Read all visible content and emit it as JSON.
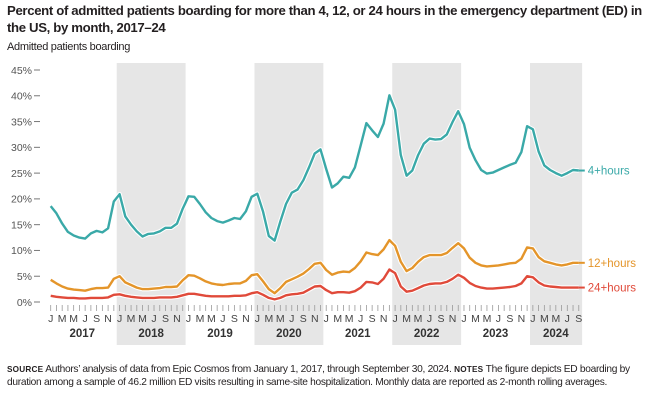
{
  "title": "Percent of admitted patients boarding for more than 4, 12, or 24 hours in the emergency department (ED) in the US, by month, 2017–24",
  "footer": {
    "source_keyword": "source",
    "source_text": "Authors’ analysis of data from Epic Cosmos from January 1, 2017, through September 30, 2024.",
    "notes_keyword": "notes",
    "notes_text": "The figure depicts ED boarding by duration among a sample of 46.2 million ED visits resulting in same-site hospitalization. Monthly data are reported as 2-month rolling averages."
  },
  "colors": {
    "series_4h": "#3aa9a8",
    "series_12h": "#e4952a",
    "series_24h": "#e04a3a",
    "band": "#e6e6e6"
  },
  "chart_data": {
    "type": "line",
    "title": "Percent of admitted patients boarding for more than 4, 12, or 24 hours in the emergency department (ED) in the US, by month, 2017–24",
    "xlabel": "",
    "ylabel": "Admitted patients boarding",
    "ylim": [
      0,
      45
    ],
    "yticks": [
      "0%",
      "5%",
      "10%",
      "15%",
      "20%",
      "25%",
      "30%",
      "35%",
      "40%",
      "45%"
    ],
    "ytick_values": [
      0,
      5,
      10,
      15,
      20,
      25,
      30,
      35,
      40,
      45
    ],
    "x_start": "2017-01",
    "x_end": "2024-09",
    "month_tick_labels": [
      "J",
      "M",
      "M",
      "J",
      "S",
      "N"
    ],
    "years": [
      "2017",
      "2018",
      "2019",
      "2020",
      "2021",
      "2022",
      "2023",
      "2024"
    ],
    "shaded_years": [
      "2018",
      "2020",
      "2022",
      "2024"
    ],
    "grid": false,
    "legend": "inline-right",
    "series": [
      {
        "name": "4+hours",
        "values": [
          18.6,
          17.2,
          15.2,
          13.6,
          12.9,
          12.5,
          12.3,
          13.3,
          13.8,
          13.5,
          14.3,
          19.5,
          20.9,
          16.6,
          15.0,
          13.7,
          12.7,
          13.2,
          13.3,
          13.7,
          14.4,
          14.4,
          15.2,
          18.1,
          20.5,
          20.4,
          19.0,
          17.4,
          16.3,
          15.7,
          15.4,
          15.8,
          16.3,
          16.1,
          17.6,
          20.4,
          21.0,
          17.5,
          12.8,
          11.9,
          15.6,
          19.0,
          21.2,
          21.8,
          23.6,
          26.1,
          28.8,
          29.6,
          25.8,
          22.2,
          23.0,
          24.3,
          24.1,
          26.1,
          30.4,
          34.7,
          33.3,
          32.0,
          34.6,
          40.1,
          37.3,
          28.5,
          24.5,
          25.5,
          28.5,
          30.7,
          31.7,
          31.5,
          31.6,
          32.5,
          34.9,
          37.0,
          34.5,
          29.9,
          27.5,
          25.6,
          24.9,
          25.1,
          25.6,
          26.1,
          26.6,
          27.0,
          29.1,
          34.1,
          33.5,
          29.2,
          26.5,
          25.6,
          25.0,
          24.5,
          25.0,
          25.6,
          25.5
        ]
      },
      {
        "name": "12+hours",
        "values": [
          4.3,
          3.6,
          3.0,
          2.6,
          2.4,
          2.3,
          2.2,
          2.5,
          2.7,
          2.7,
          2.8,
          4.5,
          5.0,
          3.8,
          3.3,
          2.8,
          2.5,
          2.5,
          2.6,
          2.7,
          2.9,
          2.9,
          3.0,
          4.2,
          5.2,
          5.1,
          4.6,
          4.0,
          3.6,
          3.4,
          3.3,
          3.5,
          3.6,
          3.6,
          4.1,
          5.2,
          5.4,
          4.0,
          2.5,
          1.7,
          2.7,
          3.9,
          4.4,
          4.9,
          5.5,
          6.4,
          7.4,
          7.6,
          6.2,
          5.3,
          5.7,
          5.9,
          5.8,
          6.6,
          7.9,
          9.6,
          9.3,
          9.1,
          10.2,
          12.0,
          10.9,
          7.8,
          6.0,
          6.6,
          7.8,
          8.7,
          9.1,
          9.1,
          9.1,
          9.5,
          10.5,
          11.4,
          10.4,
          8.6,
          7.6,
          7.1,
          6.9,
          7.0,
          7.1,
          7.3,
          7.5,
          7.6,
          8.4,
          10.6,
          10.4,
          8.7,
          7.9,
          7.6,
          7.3,
          7.1,
          7.3,
          7.6,
          7.6
        ]
      },
      {
        "name": "24+hours",
        "values": [
          1.2,
          1.0,
          0.9,
          0.8,
          0.8,
          0.7,
          0.7,
          0.8,
          0.8,
          0.8,
          0.9,
          1.4,
          1.5,
          1.2,
          1.0,
          0.9,
          0.8,
          0.8,
          0.8,
          0.9,
          0.9,
          0.9,
          1.0,
          1.3,
          1.6,
          1.6,
          1.4,
          1.2,
          1.1,
          1.1,
          1.1,
          1.1,
          1.2,
          1.2,
          1.3,
          1.7,
          1.9,
          1.4,
          0.8,
          0.5,
          0.8,
          1.3,
          1.5,
          1.6,
          1.8,
          2.4,
          3.0,
          3.1,
          2.3,
          1.7,
          1.9,
          1.9,
          1.8,
          2.1,
          2.8,
          3.9,
          3.8,
          3.5,
          4.5,
          6.3,
          5.6,
          3.0,
          2.0,
          2.2,
          2.7,
          3.2,
          3.5,
          3.6,
          3.6,
          3.9,
          4.5,
          5.3,
          4.7,
          3.7,
          3.1,
          2.8,
          2.6,
          2.6,
          2.7,
          2.8,
          2.9,
          3.1,
          3.6,
          5.0,
          4.8,
          3.8,
          3.2,
          3.0,
          2.9,
          2.8,
          2.8,
          2.8,
          2.8
        ]
      }
    ]
  }
}
